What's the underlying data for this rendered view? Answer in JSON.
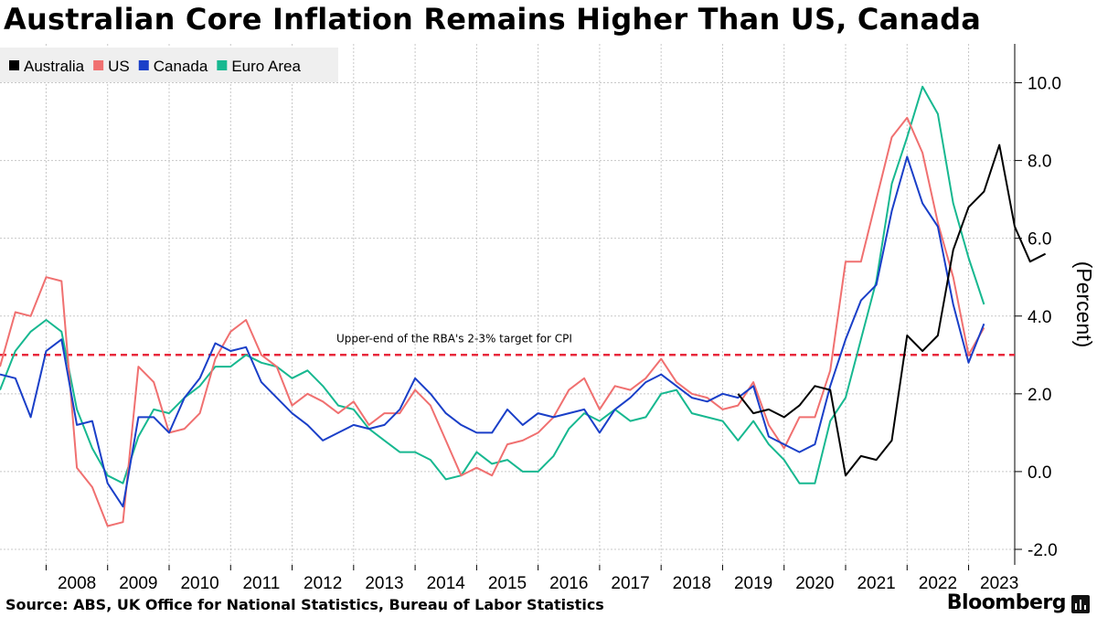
{
  "title": "Australian Core Inflation Remains Higher Than US, Canada",
  "source": "Source: ABS, UK Office for National Statistics, Bureau of Labor Statistics",
  "brand": "Bloomberg",
  "colors": {
    "Australia": "#000000",
    "US": "#f07070",
    "Canada": "#1a3fc8",
    "Euro Area": "#17b890",
    "target_line": "#e8283c",
    "grid": "#c8c8c8"
  },
  "chart_data": {
    "type": "line",
    "ylabel": "(Percent)",
    "ylim": [
      -2.4,
      11.0
    ],
    "yticks": [
      -2.0,
      0.0,
      2.0,
      4.0,
      6.0,
      8.0,
      10.0
    ],
    "ytick_labels": [
      "-2.0",
      "0.0",
      "2.0",
      "4.0",
      "6.0",
      "8.0",
      "10.0"
    ],
    "x_start": 2007.25,
    "x_step": 0.25,
    "xlim": [
      2007.25,
      2023.75
    ],
    "xticks": [
      "2008",
      "2009",
      "2010",
      "2011",
      "2012",
      "2013",
      "2014",
      "2015",
      "2016",
      "2017",
      "2018",
      "2019",
      "2020",
      "2021",
      "2022",
      "2023"
    ],
    "legend_position": "top-left",
    "reference_line": {
      "value": 3.0,
      "label": "Upper-end of the RBA's 2-3% target for CPI"
    },
    "series": [
      {
        "name": "Australia",
        "start_index": 48,
        "values": [
          2.0,
          1.5,
          1.6,
          1.4,
          1.7,
          2.2,
          2.1,
          -0.1,
          0.4,
          0.3,
          0.8,
          3.5,
          3.1,
          3.5,
          5.7,
          6.8,
          7.2,
          8.4,
          6.3,
          5.4,
          5.6
        ]
      },
      {
        "name": "US",
        "start_index": 0,
        "values": [
          2.7,
          4.1,
          4.0,
          5.0,
          4.9,
          0.1,
          -0.4,
          -1.4,
          -1.3,
          2.7,
          2.3,
          1.0,
          1.1,
          1.5,
          2.9,
          3.6,
          3.9,
          3.0,
          2.7,
          1.7,
          2.0,
          1.8,
          1.5,
          1.8,
          1.2,
          1.5,
          1.5,
          2.1,
          1.7,
          0.8,
          -0.1,
          0.1,
          -0.1,
          0.7,
          0.8,
          1.0,
          1.4,
          2.1,
          2.4,
          1.6,
          2.2,
          2.1,
          2.4,
          2.9,
          2.3,
          2.0,
          1.9,
          1.6,
          1.7,
          2.3,
          1.2,
          0.6,
          1.4,
          1.4,
          2.6,
          5.4,
          5.4,
          7.0,
          8.6,
          9.1,
          8.2,
          6.4,
          5.0,
          3.0,
          3.7
        ]
      },
      {
        "name": "Canada",
        "start_index": 0,
        "values": [
          2.5,
          2.4,
          1.4,
          3.1,
          3.4,
          1.2,
          1.3,
          -0.3,
          -0.9,
          1.4,
          1.4,
          1.0,
          1.9,
          2.4,
          3.3,
          3.1,
          3.2,
          2.3,
          1.9,
          1.5,
          1.2,
          0.8,
          1.0,
          1.2,
          1.1,
          1.2,
          1.6,
          2.4,
          2.0,
          1.5,
          1.2,
          1.0,
          1.0,
          1.6,
          1.2,
          1.5,
          1.4,
          1.5,
          1.6,
          1.0,
          1.6,
          1.9,
          2.3,
          2.5,
          2.2,
          1.9,
          1.8,
          2.0,
          1.9,
          2.2,
          0.9,
          0.7,
          0.5,
          0.7,
          2.2,
          3.4,
          4.4,
          4.8,
          6.7,
          8.1,
          6.9,
          6.3,
          4.3,
          2.8,
          3.8
        ]
      },
      {
        "name": "Euro Area",
        "start_index": 0,
        "values": [
          2.1,
          3.1,
          3.6,
          3.9,
          3.6,
          1.6,
          0.6,
          -0.1,
          -0.3,
          0.9,
          1.6,
          1.5,
          1.9,
          2.2,
          2.7,
          2.7,
          3.0,
          2.8,
          2.7,
          2.4,
          2.6,
          2.2,
          1.7,
          1.6,
          1.1,
          0.8,
          0.5,
          0.5,
          0.3,
          -0.2,
          -0.1,
          0.5,
          0.2,
          0.3,
          0.0,
          0.0,
          0.4,
          1.1,
          1.5,
          1.3,
          1.6,
          1.3,
          1.4,
          2.0,
          2.1,
          1.5,
          1.4,
          1.3,
          0.8,
          1.3,
          0.7,
          0.3,
          -0.3,
          -0.3,
          1.3,
          1.9,
          3.4,
          4.9,
          7.4,
          8.6,
          9.9,
          9.2,
          6.9,
          5.5,
          4.3
        ]
      }
    ]
  }
}
